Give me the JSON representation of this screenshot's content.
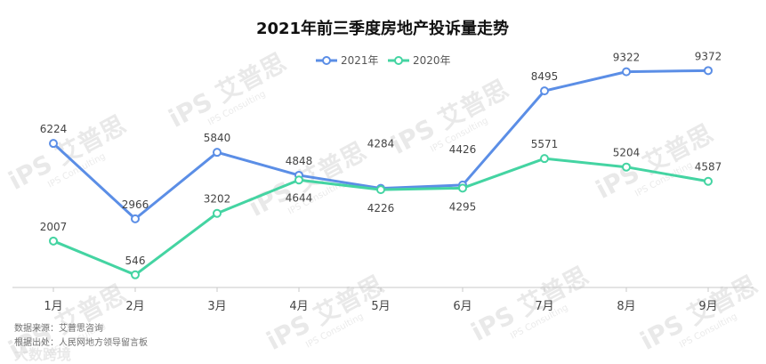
{
  "chart_data": {
    "type": "line",
    "title": "2021年前三季度房地产投诉量走势",
    "categories": [
      "1月",
      "2月",
      "3月",
      "4月",
      "5月",
      "6月",
      "7月",
      "8月",
      "9月"
    ],
    "series": [
      {
        "name": "2021年",
        "color": "#5b8ee6",
        "values": [
          6224,
          2966,
          5840,
          4848,
          4284,
          4426,
          8495,
          9322,
          9372
        ]
      },
      {
        "name": "2020年",
        "color": "#44d4a2",
        "values": [
          2007,
          546,
          3202,
          4644,
          4226,
          4295,
          5571,
          5204,
          4587
        ]
      }
    ],
    "legend_position": "top-center",
    "grid": false,
    "ylim": [
      0,
      10500
    ]
  },
  "footer": {
    "source": "数据来源：艾普思咨询",
    "note": "根据出处：人民网地方领导留言板"
  },
  "watermark": {
    "brand": "iPS 艾普思",
    "sub": "IPS Consulting",
    "corner_brand": "大数跨境"
  }
}
